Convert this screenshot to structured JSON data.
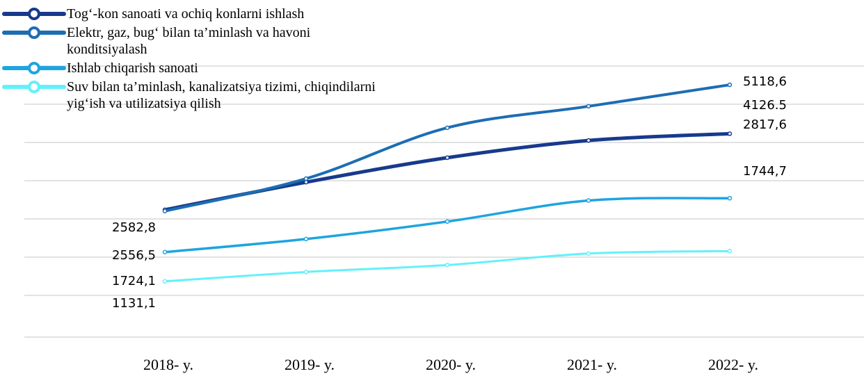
{
  "chart_data": {
    "type": "line",
    "categories": [
      "2018- y.",
      "2019- y.",
      "2020- y.",
      "2021- y.",
      "2022- y."
    ],
    "series": [
      {
        "name": "Tog‘-kon sanoati va ochiq konlarni ishlash",
        "color": "#173a8c",
        "width": 5,
        "values": [
          2582.8,
          3143,
          3640,
          3989,
          4126.5
        ],
        "value_labels": [
          "2582,8",
          null,
          null,
          null,
          "4126.5"
        ]
      },
      {
        "name": "Elektr, gaz, bug‘ bilan ta’minlash va havoni konditsiyalash",
        "color": "#1d6db3",
        "width": 4,
        "values": [
          2556.5,
          3215,
          4247,
          4683,
          5118.6
        ],
        "value_labels": [
          "2556,5",
          null,
          null,
          null,
          "5118,6"
        ]
      },
      {
        "name": "Ishlab chiqarish sanoati",
        "color": "#1ea4e0",
        "width": 3.5,
        "values": [
          1724.1,
          1990,
          2344,
          2771,
          2817.6
        ],
        "value_labels": [
          "1724,1",
          null,
          null,
          null,
          "2817,6"
        ]
      },
      {
        "name": "Suv bilan ta’minlash, kanalizatsiya tizimi, chiqindilarni yig‘ish va utilizatsiya qilish",
        "color": "#62f1fb",
        "width": 3,
        "values": [
          1131.1,
          1321,
          1462,
          1696,
          1744.7
        ],
        "value_labels": [
          "1131,1",
          null,
          null,
          null,
          "1744,7"
        ]
      }
    ],
    "ylim": [
      0,
      5500
    ],
    "legend": "top-left"
  }
}
